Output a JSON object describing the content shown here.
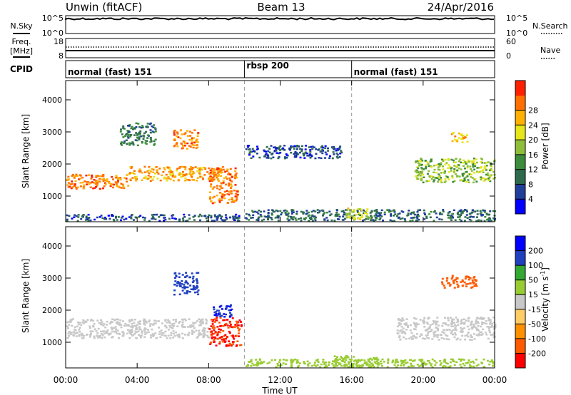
{
  "header": {
    "station": "Unwin (fitACF)",
    "beam": "Beam 13",
    "date": "24/Apr/2016"
  },
  "nsky_panel": {
    "left_label": "N.Sky",
    "right_label": "N.Search",
    "left_ticks": [
      "10^5",
      "10^0"
    ],
    "right_ticks": [
      "10^5",
      "10^0"
    ]
  },
  "freq_panel": {
    "left_label_line1": "Freq.",
    "left_label_line2": "[MHz]",
    "right_label": "Nave",
    "left_ticks": [
      "18",
      "8"
    ],
    "right_ticks": [
      "60",
      "0"
    ]
  },
  "cpid": {
    "label": "CPID",
    "segments": [
      {
        "text": "normal (fast) 151",
        "start_hour": 0
      },
      {
        "text": "rbsp 200",
        "start_hour": 10
      },
      {
        "text": "normal (fast) 151",
        "start_hour": 16
      }
    ]
  },
  "colors": {
    "power_scale": [
      "#0000ff",
      "#1f3f9a",
      "#2e6b4c",
      "#3d8b3d",
      "#8fbf3a",
      "#e6e61a",
      "#ffb000",
      "#ff7000",
      "#ff2000"
    ],
    "velocity_scale": [
      "#ff0000",
      "#ff5a00",
      "#ff9000",
      "#ffcc66",
      "#c8c8c8",
      "#99cc33",
      "#33a833",
      "#2040c0",
      "#0000ff"
    ]
  },
  "chart_data": [
    {
      "type": "heatmap",
      "name": "power",
      "xlabel": "",
      "ylabel": "Slant Range [km]",
      "colorbar_label": "Power [dB]",
      "colorbar_ticks": [
        "4",
        "8",
        "12",
        "16",
        "20",
        "24",
        "28"
      ],
      "xlim": [
        0,
        24
      ],
      "ylim": [
        200,
        4600
      ],
      "yticks": [
        "1000",
        "2000",
        "3000",
        "4000"
      ],
      "blobs": [
        {
          "t0": 0.0,
          "t1": 3.5,
          "r0": 1250,
          "r1": 1700,
          "value": 26
        },
        {
          "t0": 3.5,
          "t1": 8.8,
          "r0": 1500,
          "r1": 1950,
          "value": 24
        },
        {
          "t0": 8.0,
          "t1": 9.6,
          "r0": 800,
          "r1": 1900,
          "value": 26
        },
        {
          "t0": 6.0,
          "t1": 7.4,
          "r0": 2500,
          "r1": 3100,
          "value": 25
        },
        {
          "t0": 3.0,
          "t1": 5.0,
          "r0": 2600,
          "r1": 3300,
          "value": 10
        },
        {
          "t0": 0.0,
          "t1": 9.8,
          "r0": 250,
          "r1": 450,
          "value": 6
        },
        {
          "t0": 10.0,
          "t1": 24.0,
          "r0": 250,
          "r1": 600,
          "value": 8
        },
        {
          "t0": 15.5,
          "t1": 17.0,
          "r0": 300,
          "r1": 650,
          "value": 18
        },
        {
          "t0": 19.5,
          "t1": 24.0,
          "r0": 1450,
          "r1": 2200,
          "value": 16
        },
        {
          "t0": 21.5,
          "t1": 22.5,
          "r0": 2700,
          "r1": 3000,
          "value": 22
        },
        {
          "t0": 10.0,
          "t1": 15.5,
          "r0": 2200,
          "r1": 2600,
          "value": 6
        }
      ]
    },
    {
      "type": "heatmap",
      "name": "velocity",
      "xlabel": "Time UT",
      "ylabel": "Slant Range [km]",
      "colorbar_label": "Velocity [m s^-1]",
      "colorbar_ticks": [
        "-200",
        "-100",
        "-50",
        "-15",
        "15",
        "50",
        "100",
        "200"
      ],
      "xlim": [
        0,
        24
      ],
      "xticks": [
        "00:00",
        "04:00",
        "08:00",
        "12:00",
        "16:00",
        "20:00",
        "00:00"
      ],
      "ylim": [
        200,
        4600
      ],
      "yticks": [
        "1000",
        "2000",
        "3000",
        "4000"
      ],
      "blobs": [
        {
          "t0": 0.0,
          "t1": 8.0,
          "r0": 1150,
          "r1": 1750,
          "value": 0
        },
        {
          "t0": 8.0,
          "t1": 9.8,
          "r0": 900,
          "r1": 1800,
          "value": -200
        },
        {
          "t0": 8.2,
          "t1": 9.4,
          "r0": 1800,
          "r1": 2200,
          "value": 200
        },
        {
          "t0": 6.0,
          "t1": 7.4,
          "r0": 2500,
          "r1": 3200,
          "value": 150
        },
        {
          "t0": 21.0,
          "t1": 23.0,
          "r0": 2700,
          "r1": 3100,
          "value": -150
        },
        {
          "t0": 18.5,
          "t1": 24.0,
          "r0": 1100,
          "r1": 1800,
          "value": 0
        },
        {
          "t0": 15.0,
          "t1": 17.5,
          "r0": 250,
          "r1": 600,
          "value": 40
        },
        {
          "t0": 10.0,
          "t1": 24.0,
          "r0": 250,
          "r1": 500,
          "value": 40
        }
      ]
    }
  ]
}
